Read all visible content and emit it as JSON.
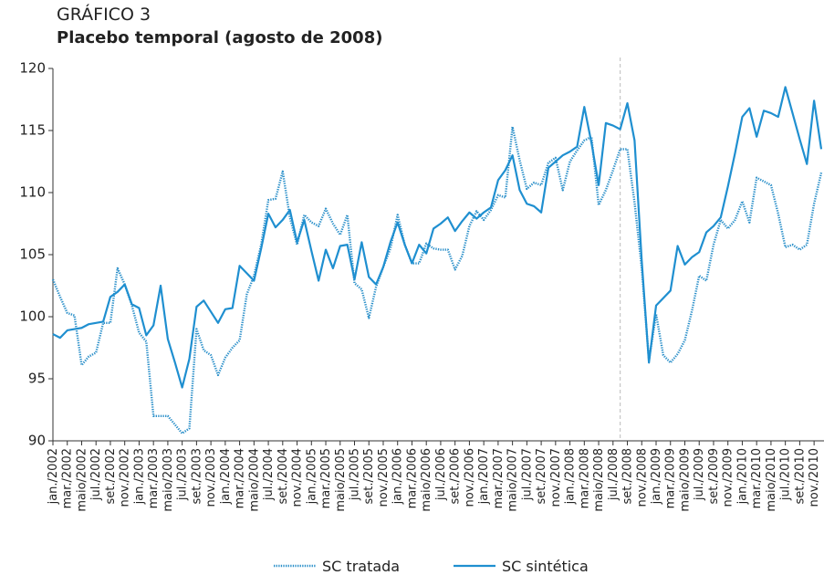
{
  "chart_data": {
    "type": "line",
    "title": "GRÁFICO 3",
    "subtitle": "Placebo temporal (agosto de 2008)",
    "categories": [
      "jan./2002",
      null,
      "mar./2002",
      null,
      "maio/2002",
      null,
      "jul./2002",
      null,
      "set./2002",
      null,
      "nov./2002",
      null,
      "jan./2003",
      null,
      "mar./2003",
      null,
      "maio/2003",
      null,
      "jul./2003",
      null,
      "set./2003",
      null,
      "nov./2003",
      null,
      "jan./2004",
      null,
      "mar./2004",
      null,
      "maio/2004",
      null,
      "jul./2004",
      null,
      "set./2004",
      null,
      "nov./2004",
      null,
      "jan./2005",
      null,
      "mar./2005",
      null,
      "maio/2005",
      null,
      "jul./2005",
      null,
      "set./2005",
      null,
      "nov./2005",
      null,
      "jan./2006",
      null,
      "mar./2006",
      null,
      "maio/2006",
      null,
      "jul./2006",
      null,
      "set./2006",
      null,
      "nov./2006",
      null,
      "jan./2007",
      null,
      "mar./2007",
      null,
      "maio/2007",
      null,
      "jul./2007",
      null,
      "set./2007",
      null,
      "nov./2007",
      null,
      "jan./2008",
      null,
      "mar./2008",
      null,
      "maio/2008",
      null,
      "jul./2008",
      null,
      "set./2008",
      null,
      "nov./2008",
      null,
      "jan./2009",
      null,
      "mar./2009",
      null,
      "maio/2009",
      null,
      "jul./2009",
      null,
      "set./2009",
      null,
      "nov./2009",
      null,
      "jan./2010",
      null,
      "mar./2010",
      null,
      "maio/2010",
      null,
      "jul./2010",
      null,
      "set./2010",
      null,
      "nov./2010",
      null
    ],
    "series": [
      {
        "name": "SC tratada",
        "color": "#2a8fc9",
        "style": "dotted",
        "values": [
          103.0,
          101.6,
          100.3,
          100.1,
          96.1,
          96.8,
          97.1,
          99.5,
          99.5,
          103.9,
          102.6,
          100.9,
          98.7,
          98.0,
          92.0,
          92.0,
          92.0,
          91.3,
          90.6,
          91.0,
          99.0,
          97.3,
          96.9,
          95.3,
          96.7,
          97.5,
          98.1,
          101.8,
          103.3,
          105.8,
          109.4,
          109.5,
          111.7,
          108.0,
          105.8,
          108.2,
          107.6,
          107.3,
          108.7,
          107.5,
          106.6,
          108.2,
          102.7,
          102.2,
          99.9,
          102.4,
          104.0,
          105.5,
          108.2,
          105.8,
          104.3,
          104.3,
          105.9,
          105.5,
          105.4,
          105.4,
          103.8,
          104.9,
          107.3,
          108.5,
          107.8,
          108.6,
          109.8,
          109.6,
          115.3,
          112.6,
          110.3,
          110.8,
          110.6,
          112.4,
          112.8,
          110.2,
          112.5,
          113.4,
          114.2,
          114.5,
          109.0,
          110.2,
          111.8,
          113.5,
          113.5,
          109.2,
          103.9,
          96.5,
          100.2,
          96.9,
          96.3,
          97.0,
          98.1,
          100.5,
          103.3,
          102.9,
          105.8,
          107.8,
          107.1,
          107.8,
          109.3,
          107.6,
          111.2,
          110.9,
          110.6,
          108.3,
          105.6,
          105.8,
          105.4,
          105.8,
          109.1,
          111.6
        ]
      },
      {
        "name": "SC sintética",
        "color": "#1f8fd0",
        "style": "solid",
        "values": [
          98.6,
          98.3,
          98.9,
          99.0,
          99.1,
          99.4,
          99.5,
          99.6,
          101.6,
          102.0,
          102.6,
          101.0,
          100.7,
          98.5,
          99.3,
          102.5,
          98.2,
          96.3,
          94.3,
          96.6,
          100.8,
          101.3,
          100.4,
          99.5,
          100.6,
          100.7,
          104.1,
          103.5,
          102.9,
          105.5,
          108.3,
          107.2,
          107.8,
          108.6,
          106.0,
          107.8,
          105.3,
          102.9,
          105.4,
          103.9,
          105.7,
          105.8,
          103.0,
          106.0,
          103.2,
          102.6,
          104.0,
          106.0,
          107.6,
          105.8,
          104.3,
          105.8,
          105.1,
          107.1,
          107.5,
          108.0,
          106.9,
          107.7,
          108.4,
          107.9,
          108.4,
          108.8,
          111.0,
          111.8,
          113.0,
          110.2,
          109.1,
          108.9,
          108.4,
          112.0,
          112.5,
          113.0,
          113.3,
          113.7,
          116.9,
          114.0,
          110.6,
          115.6,
          115.4,
          115.1,
          117.2,
          114.2,
          104.5,
          96.3,
          100.9,
          101.5,
          102.1,
          105.7,
          104.2,
          104.8,
          105.2,
          106.8,
          107.3,
          108.0,
          110.5,
          113.2,
          116.1,
          116.8,
          114.5,
          116.6,
          116.4,
          116.1,
          118.5,
          116.4,
          114.3,
          112.3,
          117.4,
          113.5
        ]
      }
    ],
    "ylim": [
      90,
      120
    ],
    "yticks": [
      90,
      95,
      100,
      105,
      110,
      115,
      120
    ],
    "vline_at": 79,
    "grid": false
  }
}
